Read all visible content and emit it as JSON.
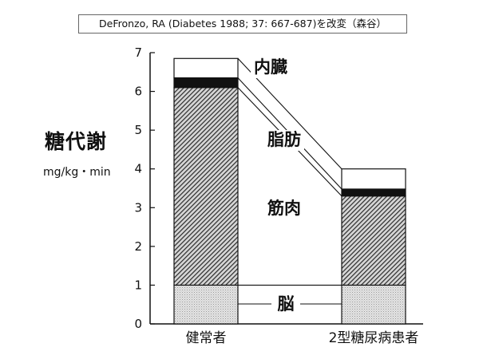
{
  "source": "DeFronzo, RA (Diabetes 1988; 37: 667-687)を改変（森谷）",
  "chart_data": {
    "type": "bar",
    "stacked": true,
    "ylabel": "糖代謝",
    "yunit": "mg/kg・min",
    "ylim": [
      0,
      7
    ],
    "yticks": [
      "0",
      "1",
      "2",
      "3",
      "4",
      "5",
      "6",
      "7"
    ],
    "categories": [
      "健常者",
      "2型糖尿病患者"
    ],
    "series": [
      {
        "name": "脳",
        "values": [
          1.0,
          1.0
        ],
        "pattern": "dots"
      },
      {
        "name": "筋肉",
        "values": [
          5.1,
          2.3
        ],
        "pattern": "hatch"
      },
      {
        "name": "脂肪",
        "values": [
          0.25,
          0.18
        ],
        "pattern": "black"
      },
      {
        "name": "内臓",
        "values": [
          0.5,
          0.52
        ],
        "pattern": "white"
      }
    ],
    "labels": [
      {
        "series": "内臓",
        "text": "内臓"
      },
      {
        "series": "脂肪",
        "text": "脂肪"
      },
      {
        "series": "筋肉",
        "text": "筋肉"
      },
      {
        "series": "脳",
        "text": "脳"
      }
    ]
  }
}
